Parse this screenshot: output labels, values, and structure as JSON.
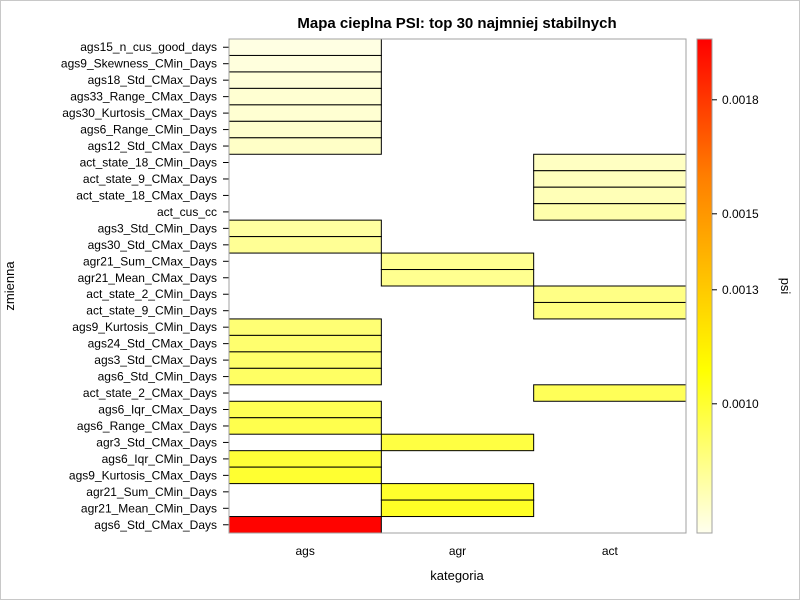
{
  "chart_data": {
    "type": "heatmap",
    "title": "Mapa cieplna PSI: top 30 najmniej stabilnych",
    "xlabel": "kategoria",
    "ylabel": "zmienna",
    "x_categories": [
      "ags",
      "agr",
      "act"
    ],
    "y_categories": [
      "ags15_n_cus_good_days",
      "ags9_Skewness_CMin_Days",
      "ags18_Std_CMax_Days",
      "ags33_Range_CMax_Days",
      "ags30_Kurtosis_CMax_Days",
      "ags6_Range_CMin_Days",
      "ags12_Std_CMax_Days",
      "act_state_18_CMin_Days",
      "act_state_9_CMax_Days",
      "act_state_18_CMax_Days",
      "act_cus_cc",
      "ags3_Std_CMin_Days",
      "ags30_Std_CMax_Days",
      "agr21_Sum_CMax_Days",
      "agr21_Mean_CMax_Days",
      "act_state_2_CMin_Days",
      "act_state_9_CMin_Days",
      "ags9_Kurtosis_CMin_Days",
      "ags24_Std_CMax_Days",
      "ags3_Std_CMax_Days",
      "ags6_Std_CMin_Days",
      "act_state_2_CMax_Days",
      "ags6_Iqr_CMax_Days",
      "ags6_Range_CMax_Days",
      "agr3_Std_CMax_Days",
      "ags6_Iqr_CMin_Days",
      "ags9_Kurtosis_CMax_Days",
      "agr21_Sum_CMin_Days",
      "agr21_Mean_CMin_Days",
      "ags6_Std_CMax_Days"
    ],
    "cells": [
      {
        "y": "ags15_n_cus_good_days",
        "x": "ags",
        "value": 0.00068
      },
      {
        "y": "ags9_Skewness_CMin_Days",
        "x": "ags",
        "value": 0.00069
      },
      {
        "y": "ags18_Std_CMax_Days",
        "x": "ags",
        "value": 0.0007
      },
      {
        "y": "ags33_Range_CMax_Days",
        "x": "ags",
        "value": 0.00071
      },
      {
        "y": "ags30_Kurtosis_CMax_Days",
        "x": "ags",
        "value": 0.00071
      },
      {
        "y": "ags6_Range_CMin_Days",
        "x": "ags",
        "value": 0.00072
      },
      {
        "y": "ags12_Std_CMax_Days",
        "x": "ags",
        "value": 0.00073
      },
      {
        "y": "act_state_18_CMin_Days",
        "x": "act",
        "value": 0.00074
      },
      {
        "y": "act_state_9_CMax_Days",
        "x": "act",
        "value": 0.00075
      },
      {
        "y": "act_state_18_CMax_Days",
        "x": "act",
        "value": 0.00076
      },
      {
        "y": "act_cus_cc",
        "x": "act",
        "value": 0.00078
      },
      {
        "y": "ags3_Std_CMin_Days",
        "x": "ags",
        "value": 0.0008
      },
      {
        "y": "ags30_Std_CMax_Days",
        "x": "ags",
        "value": 0.00082
      },
      {
        "y": "agr21_Sum_CMax_Days",
        "x": "agr",
        "value": 0.00083
      },
      {
        "y": "agr21_Mean_CMax_Days",
        "x": "agr",
        "value": 0.00083
      },
      {
        "y": "act_state_2_CMin_Days",
        "x": "act",
        "value": 0.00085
      },
      {
        "y": "act_state_9_CMin_Days",
        "x": "act",
        "value": 0.00086
      },
      {
        "y": "ags9_Kurtosis_CMin_Days",
        "x": "ags",
        "value": 0.00088
      },
      {
        "y": "ags24_Std_CMax_Days",
        "x": "ags",
        "value": 0.00089
      },
      {
        "y": "ags3_Std_CMax_Days",
        "x": "ags",
        "value": 0.0009
      },
      {
        "y": "ags6_Std_CMin_Days",
        "x": "ags",
        "value": 0.00091
      },
      {
        "y": "act_state_2_CMax_Days",
        "x": "act",
        "value": 0.00093
      },
      {
        "y": "ags6_Iqr_CMax_Days",
        "x": "ags",
        "value": 0.00094
      },
      {
        "y": "ags6_Range_CMax_Days",
        "x": "ags",
        "value": 0.00095
      },
      {
        "y": "agr3_Std_CMax_Days",
        "x": "agr",
        "value": 0.00097
      },
      {
        "y": "ags6_Iqr_CMin_Days",
        "x": "ags",
        "value": 0.00099
      },
      {
        "y": "ags9_Kurtosis_CMax_Days",
        "x": "ags",
        "value": 0.001
      },
      {
        "y": "agr21_Sum_CMin_Days",
        "x": "agr",
        "value": 0.00101
      },
      {
        "y": "agr21_Mean_CMin_Days",
        "x": "agr",
        "value": 0.00102
      },
      {
        "y": "ags6_Std_CMax_Days",
        "x": "ags",
        "value": 0.00195
      }
    ],
    "colorbar": {
      "label": "psi",
      "min": 0.00066,
      "max": 0.00196,
      "ticks": [
        0.001,
        0.0013,
        0.0015,
        0.0018
      ],
      "tick_labels": [
        "0.0010",
        "0.0013",
        "0.0015",
        "0.0018"
      ],
      "color_stops": [
        "#ffffee",
        "#ffff00",
        "#ff7f00",
        "#ff0000"
      ]
    },
    "grid": false,
    "legend_position": "right"
  }
}
